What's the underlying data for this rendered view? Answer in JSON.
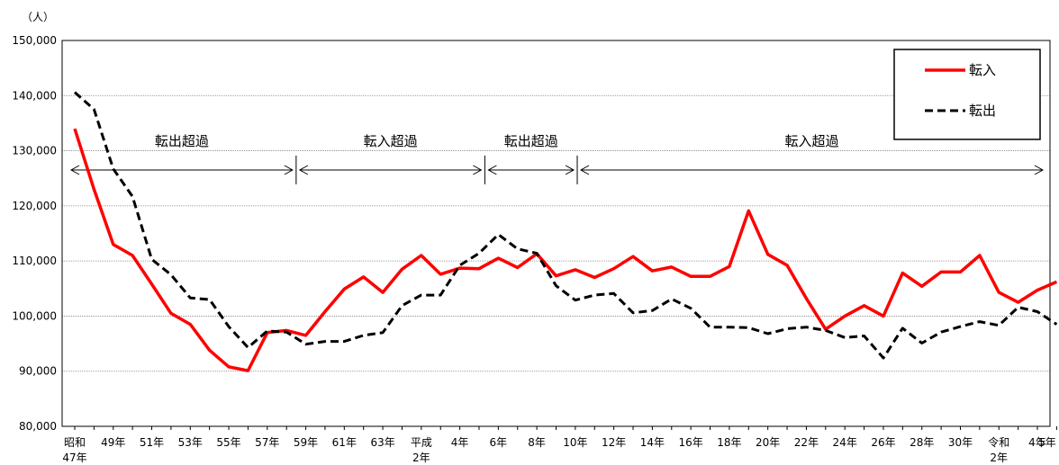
{
  "chart_data": {
    "type": "line",
    "unit_label": "（人）",
    "ylim": [
      80000,
      150000
    ],
    "y_ticks": [
      "80,000",
      "90,000",
      "100,000",
      "110,000",
      "120,000",
      "130,000",
      "140,000",
      "150,000"
    ],
    "x_tick_labels": [
      {
        "i": 0,
        "lines": [
          "昭和",
          "47年"
        ]
      },
      {
        "i": 2,
        "lines": [
          "49年"
        ]
      },
      {
        "i": 4,
        "lines": [
          "51年"
        ]
      },
      {
        "i": 6,
        "lines": [
          "53年"
        ]
      },
      {
        "i": 8,
        "lines": [
          "55年"
        ]
      },
      {
        "i": 10,
        "lines": [
          "57年"
        ]
      },
      {
        "i": 12,
        "lines": [
          "59年"
        ]
      },
      {
        "i": 14,
        "lines": [
          "61年"
        ]
      },
      {
        "i": 16,
        "lines": [
          "63年"
        ]
      },
      {
        "i": 18,
        "lines": [
          "平成",
          "2年"
        ]
      },
      {
        "i": 20,
        "lines": [
          "4年"
        ]
      },
      {
        "i": 22,
        "lines": [
          "6年"
        ]
      },
      {
        "i": 24,
        "lines": [
          "8年"
        ]
      },
      {
        "i": 26,
        "lines": [
          "10年"
        ]
      },
      {
        "i": 28,
        "lines": [
          "12年"
        ]
      },
      {
        "i": 30,
        "lines": [
          "14年"
        ]
      },
      {
        "i": 32,
        "lines": [
          "16年"
        ]
      },
      {
        "i": 34,
        "lines": [
          "18年"
        ]
      },
      {
        "i": 36,
        "lines": [
          "20年"
        ]
      },
      {
        "i": 38,
        "lines": [
          "22年"
        ]
      },
      {
        "i": 40,
        "lines": [
          "24年"
        ]
      },
      {
        "i": 42,
        "lines": [
          "26年"
        ]
      },
      {
        "i": 44,
        "lines": [
          "28年"
        ]
      },
      {
        "i": 46,
        "lines": [
          "30年"
        ]
      },
      {
        "i": 48,
        "lines": [
          "令和",
          "2年"
        ]
      },
      {
        "i": 50,
        "lines": [
          "4年"
        ]
      },
      {
        "i": 51,
        "lines": [
          "5年"
        ]
      }
    ],
    "series": [
      {
        "name": "転入",
        "color": "#ff0000",
        "style": "solid",
        "values": [
          134000,
          123000,
          113000,
          111000,
          105800,
          100500,
          98500,
          93800,
          90800,
          90100,
          97000,
          97400,
          96500,
          100800,
          104900,
          107100,
          104300,
          108500,
          111000,
          107600,
          108700,
          108600,
          110500,
          108800,
          111300,
          107300,
          108400,
          107000,
          108600,
          110800,
          108200,
          108900,
          107200,
          107200,
          109000,
          119100,
          111200,
          109200,
          103200,
          97600,
          100000,
          101900,
          100000,
          107800,
          105400,
          108000,
          108000,
          111000,
          104300,
          102500,
          104700,
          106200
        ]
      },
      {
        "name": "転出",
        "color": "#000000",
        "style": "dashed",
        "values": [
          140600,
          137500,
          126700,
          121700,
          110300,
          107500,
          103300,
          103000,
          98100,
          94300,
          97300,
          97100,
          94900,
          95400,
          95400,
          96500,
          97000,
          101900,
          103800,
          103800,
          109200,
          111400,
          114800,
          112200,
          111400,
          105500,
          102900,
          103800,
          104100,
          100600,
          101000,
          103100,
          101400,
          98000,
          98000,
          97900,
          96800,
          97700,
          98000,
          97400,
          96100,
          96400,
          92400,
          97800,
          95100,
          97100,
          98100,
          99000,
          98300,
          101600,
          100800,
          98500
        ]
      }
    ],
    "annotations": [
      {
        "text": "転出超過",
        "from": 0,
        "to": 11.5
      },
      {
        "text": "転入超過",
        "from": 11.5,
        "to": 21.3
      },
      {
        "text": "転出超過",
        "from": 21.3,
        "to": 26.1
      },
      {
        "text": "転入超過",
        "from": 26.1,
        "to": 51
      }
    ],
    "legend_position": "top-right",
    "grid": "horizontal"
  }
}
